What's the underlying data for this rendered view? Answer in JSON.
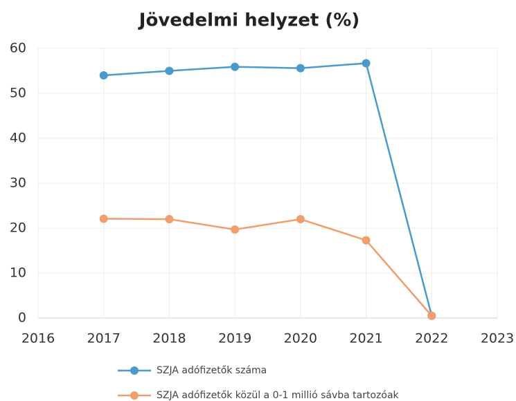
{
  "chart_data": {
    "type": "line",
    "title": "Jövedelmi helyzet (%)",
    "x": [
      2017,
      2018,
      2019,
      2020,
      2021,
      2022
    ],
    "series": [
      {
        "name": "SZJA adófizetők száma",
        "color": "#4a9bcc",
        "values": [
          54,
          55,
          55.9,
          55.6,
          56.7,
          0.5
        ]
      },
      {
        "name": "SZJA adófizetők közül a 0-1 millió sávba tartozóak",
        "color": "#ef9e6c",
        "values": [
          22.1,
          22,
          19.7,
          22,
          17.3,
          0.5
        ]
      }
    ],
    "xlim": [
      2016,
      2023
    ],
    "xticks": [
      2016,
      2017,
      2018,
      2019,
      2020,
      2021,
      2022,
      2023
    ],
    "ylim": [
      0,
      60
    ],
    "yticks": [
      0,
      10,
      20,
      30,
      40,
      50,
      60
    ],
    "grid": true
  }
}
